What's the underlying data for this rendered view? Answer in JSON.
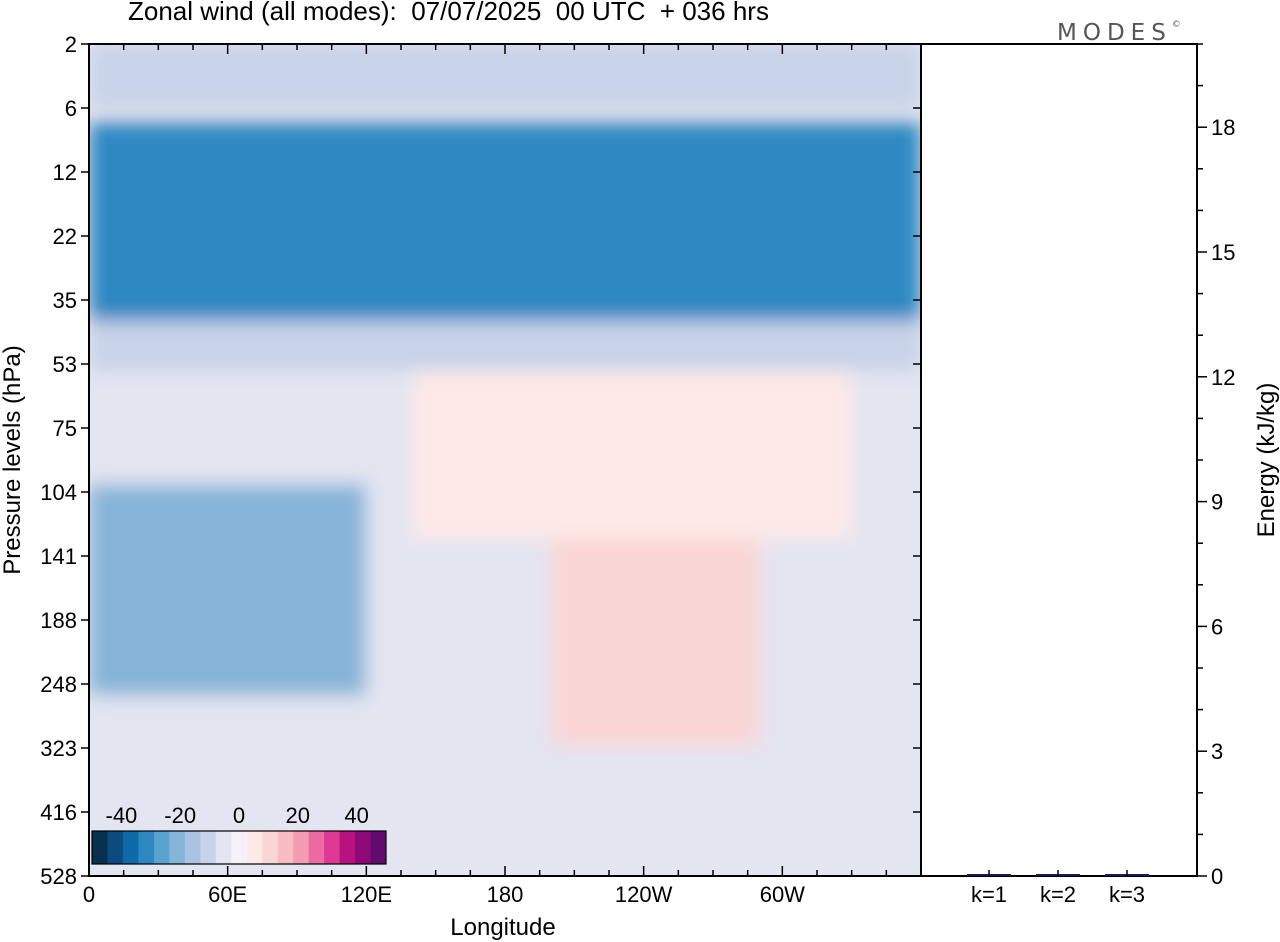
{
  "title": "Zonal wind (all modes):  07/07/2025  00 UTC  + 036 hrs",
  "logo": {
    "text": "MODES",
    "mark": "©"
  },
  "chart_data": [
    {
      "type": "heatmap",
      "xlabel": "Longitude",
      "ylabel": "Pressure levels (hPa)",
      "x_ticks": [
        "0",
        "60E",
        "120E",
        "180",
        "120W",
        "60W"
      ],
      "x_tick_degrees": [
        0,
        60,
        120,
        180,
        240,
        300
      ],
      "xlim": [
        0,
        360
      ],
      "y_ticks": [
        "2",
        "6",
        "12",
        "22",
        "35",
        "53",
        "75",
        "104",
        "141",
        "188",
        "248",
        "323",
        "416",
        "528"
      ],
      "y_scale": "log (pressure, decreasing upward)",
      "colorbar": {
        "tick_labels": [
          "-40",
          "-20",
          "0",
          "20",
          "40"
        ],
        "range": [
          -50,
          50
        ],
        "colors": [
          "#08304f",
          "#0b4c80",
          "#0e6aa8",
          "#2d88c2",
          "#5aa2cf",
          "#86b4d8",
          "#a9c3e0",
          "#c8d2e8",
          "#e3e5f1",
          "#f6f2f8",
          "#fde9e6",
          "#fbd6d6",
          "#f9bcc4",
          "#f59bb4",
          "#ee6aa3",
          "#df3a93",
          "#b7127f",
          "#8d0a78",
          "#620a6e"
        ]
      },
      "field_regions": [
        {
          "lon": [
            0,
            360
          ],
          "p": [
            2,
            6
          ],
          "value": -12
        },
        {
          "lon": [
            0,
            360
          ],
          "p": [
            7,
            40
          ],
          "value": -30
        },
        {
          "lon": [
            0,
            360
          ],
          "p": [
            40,
            55
          ],
          "value": -12
        },
        {
          "lon": [
            0,
            360
          ],
          "p": [
            55,
            528
          ],
          "value": -4
        },
        {
          "lon": [
            140,
            330
          ],
          "p": [
            55,
            130
          ],
          "value": 6
        },
        {
          "lon": [
            200,
            290
          ],
          "p": [
            130,
            320
          ],
          "value": 8
        },
        {
          "lon": [
            0,
            120
          ],
          "p": [
            100,
            260
          ],
          "value": -20
        }
      ]
    },
    {
      "type": "bar",
      "categories": [
        "k=1",
        "k=2",
        "k=3"
      ],
      "values": [
        0.04,
        0.02,
        0.01
      ],
      "ylabel": "Energy (kJ/kg)",
      "y_ticks": [
        "0",
        "3",
        "6",
        "9",
        "12",
        "15",
        "18"
      ],
      "ylim": [
        0,
        20
      ],
      "bar_color": "#1a1a5e"
    }
  ]
}
